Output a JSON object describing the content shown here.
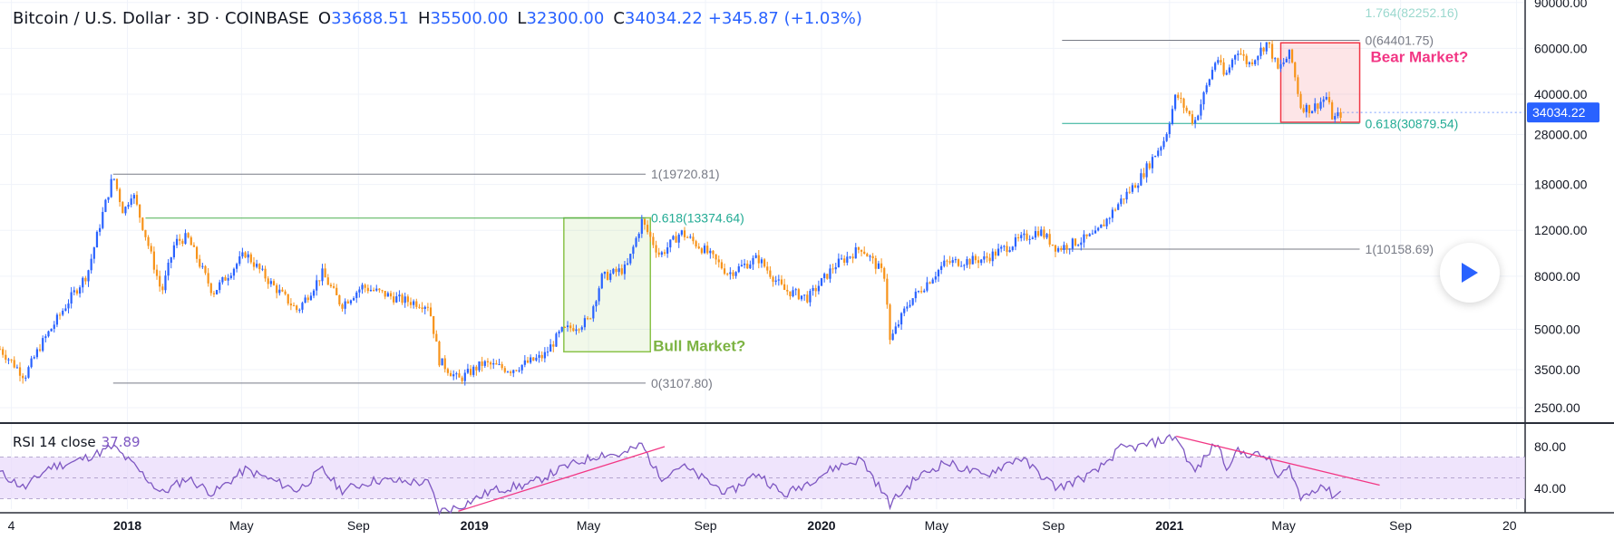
{
  "header": {
    "symbol": "Bitcoin / U.S. Dollar · 3D · COINBASE",
    "open_label": "O",
    "open": "33688.51",
    "high_label": "H",
    "high": "35500.00",
    "low_label": "L",
    "low": "32300.00",
    "close_label": "C",
    "close": "34034.22",
    "change": "+345.87 (+1.03%)"
  },
  "rsi_header": {
    "label": "RSI 14 close",
    "value": "37.89"
  },
  "colors": {
    "up": "#2962ff",
    "down": "#f7931a",
    "fib_line": "#787b86",
    "fib_green": "#22ab94",
    "bull_box": "#8bc34a",
    "bear_box": "#f23645",
    "rsi_line": "#7e57c2",
    "rsi_band": "#e8d9fb",
    "trend": "#f23684",
    "price_badge": "#2962ff"
  },
  "chart_data": [
    {
      "type": "candlestick",
      "title": "Bitcoin / U.S. Dollar · 3D · COINBASE",
      "scale": "log",
      "ylim": [
        2200,
        92000
      ],
      "y_ticks": [
        "90000.00",
        "60000.00",
        "40000.00",
        "28000.00",
        "18000.00",
        "12000.00",
        "8000.00",
        "5000.00",
        "3500.00",
        "2500.00"
      ],
      "y_tick_values": [
        90000,
        60000,
        40000,
        28000,
        18000,
        12000,
        8000,
        5000,
        3500,
        2500
      ],
      "x_ticks": [
        "4",
        "2018",
        "May",
        "Sep",
        "2019",
        "May",
        "Sep",
        "2020",
        "May",
        "Sep",
        "2021",
        "May",
        "Sep",
        "20"
      ],
      "x_tick_dates": [
        "2017-09-01",
        "2018-01-01",
        "2018-05-01",
        "2018-09-01",
        "2019-01-01",
        "2019-05-01",
        "2019-09-01",
        "2020-01-01",
        "2020-05-01",
        "2020-09-01",
        "2021-01-01",
        "2021-05-01",
        "2021-09-01",
        "2022-01-01"
      ],
      "xlim": [
        "2017-08-20",
        "2022-01-10"
      ],
      "price_path": [
        [
          "2017-08-20",
          4200
        ],
        [
          "2017-09-15",
          3300
        ],
        [
          "2017-10-01",
          4300
        ],
        [
          "2017-11-01",
          6500
        ],
        [
          "2017-11-20",
          8200
        ],
        [
          "2017-12-05",
          13500
        ],
        [
          "2017-12-17",
          19500
        ],
        [
          "2017-12-28",
          14000
        ],
        [
          "2018-01-06",
          17000
        ],
        [
          "2018-01-20",
          11500
        ],
        [
          "2018-02-06",
          6900
        ],
        [
          "2018-02-20",
          10800
        ],
        [
          "2018-03-05",
          11300
        ],
        [
          "2018-04-01",
          6900
        ],
        [
          "2018-05-05",
          9800
        ],
        [
          "2018-06-01",
          7500
        ],
        [
          "2018-06-29",
          5900
        ],
        [
          "2018-07-25",
          8200
        ],
        [
          "2018-08-14",
          6200
        ],
        [
          "2018-09-05",
          7300
        ],
        [
          "2018-10-15",
          6500
        ],
        [
          "2018-11-14",
          6200
        ],
        [
          "2018-11-25",
          3800
        ],
        [
          "2018-12-15",
          3200
        ],
        [
          "2019-01-10",
          3700
        ],
        [
          "2019-02-08",
          3500
        ],
        [
          "2019-03-15",
          3950
        ],
        [
          "2019-04-02",
          4900
        ],
        [
          "2019-05-01",
          5400
        ],
        [
          "2019-05-15",
          7900
        ],
        [
          "2019-06-10",
          8600
        ],
        [
          "2019-06-26",
          13000
        ],
        [
          "2019-07-15",
          9600
        ],
        [
          "2019-08-06",
          11800
        ],
        [
          "2019-09-01",
          10000
        ],
        [
          "2019-09-25",
          8200
        ],
        [
          "2019-10-26",
          9400
        ],
        [
          "2019-11-22",
          7100
        ],
        [
          "2019-12-18",
          6600
        ],
        [
          "2020-01-15",
          8800
        ],
        [
          "2020-02-12",
          10300
        ],
        [
          "2020-03-08",
          8000
        ],
        [
          "2020-03-13",
          4500
        ],
        [
          "2020-04-01",
          6300
        ],
        [
          "2020-05-10",
          9000
        ],
        [
          "2020-06-20",
          9300
        ],
        [
          "2020-07-27",
          11000
        ],
        [
          "2020-08-17",
          12000
        ],
        [
          "2020-09-05",
          10200
        ],
        [
          "2020-10-15",
          11500
        ],
        [
          "2020-11-10",
          15500
        ],
        [
          "2020-12-01",
          19000
        ],
        [
          "2020-12-27",
          27000
        ],
        [
          "2021-01-08",
          40000
        ],
        [
          "2021-01-27",
          31000
        ],
        [
          "2021-02-20",
          56000
        ],
        [
          "2021-02-28",
          46000
        ],
        [
          "2021-03-13",
          60000
        ],
        [
          "2021-03-25",
          52000
        ],
        [
          "2021-04-14",
          63500
        ],
        [
          "2021-04-25",
          49500
        ],
        [
          "2021-05-08",
          57500
        ],
        [
          "2021-05-19",
          36000
        ],
        [
          "2021-05-30",
          35000
        ],
        [
          "2021-06-15",
          39000
        ],
        [
          "2021-06-22",
          32000
        ],
        [
          "2021-07-02",
          34034
        ]
      ],
      "last_price": "34034.22",
      "fib_levels": [
        {
          "label": "1(19720.81)",
          "value": 19720.81,
          "from": "2017-12-17",
          "to": "2019-06-30"
        },
        {
          "label": "0.618(13374.64)",
          "value": 13374.64,
          "from": "2018-01-20",
          "to": "2019-06-30"
        },
        {
          "label": "0(3107.80)",
          "value": 3107.8,
          "from": "2017-12-17",
          "to": "2019-06-30"
        },
        {
          "label": "0(64401.75)",
          "value": 64401.75,
          "from": "2020-09-10",
          "to": "2021-07-20"
        },
        {
          "label": "0.618(30879.54)",
          "value": 30879.54,
          "from": "2020-09-10",
          "to": "2021-07-20"
        },
        {
          "label": "1(10158.69)",
          "value": 10158.69,
          "from": "2020-09-10",
          "to": "2021-07-20"
        },
        {
          "label": "1.764(82252.16)",
          "value": 82252.16,
          "from": "2021-07-20",
          "to": "2021-07-20"
        }
      ],
      "annotations": [
        {
          "text": "Bull Market?",
          "box_from": "2019-04-05",
          "box_to": "2019-07-05",
          "box_low": 4100,
          "box_high": 13400
        },
        {
          "text": "Bear Market?",
          "box_from": "2021-04-28",
          "box_to": "2021-07-20",
          "box_low": 31200,
          "box_high": 63000
        }
      ]
    },
    {
      "type": "line",
      "title": "RSI 14 close",
      "ylim": [
        20,
        100
      ],
      "y_ticks": [
        "80.00",
        "40.00"
      ],
      "y_tick_values": [
        80,
        40
      ],
      "band": [
        30,
        70
      ],
      "rsi_path": [
        [
          "2017-08-20",
          55
        ],
        [
          "2017-09-15",
          40
        ],
        [
          "2017-10-10",
          60
        ],
        [
          "2017-11-05",
          65
        ],
        [
          "2017-12-05",
          75
        ],
        [
          "2017-12-17",
          80
        ],
        [
          "2018-01-10",
          60
        ],
        [
          "2018-02-06",
          35
        ],
        [
          "2018-03-05",
          50
        ],
        [
          "2018-04-01",
          35
        ],
        [
          "2018-05-05",
          58
        ],
        [
          "2018-06-29",
          38
        ],
        [
          "2018-07-25",
          58
        ],
        [
          "2018-08-14",
          38
        ],
        [
          "2018-09-20",
          48
        ],
        [
          "2018-11-14",
          45
        ],
        [
          "2018-11-25",
          18
        ],
        [
          "2018-12-15",
          22
        ],
        [
          "2019-01-20",
          38
        ],
        [
          "2019-03-01",
          44
        ],
        [
          "2019-04-05",
          60
        ],
        [
          "2019-05-15",
          73
        ],
        [
          "2019-06-05",
          72
        ],
        [
          "2019-06-26",
          82
        ],
        [
          "2019-07-15",
          50
        ],
        [
          "2019-08-06",
          62
        ],
        [
          "2019-09-25",
          35
        ],
        [
          "2019-10-26",
          55
        ],
        [
          "2019-11-22",
          33
        ],
        [
          "2020-01-15",
          60
        ],
        [
          "2020-02-12",
          68
        ],
        [
          "2020-03-13",
          25
        ],
        [
          "2020-04-10",
          50
        ],
        [
          "2020-05-10",
          65
        ],
        [
          "2020-06-20",
          52
        ],
        [
          "2020-07-27",
          70
        ],
        [
          "2020-09-05",
          40
        ],
        [
          "2020-10-15",
          55
        ],
        [
          "2020-11-10",
          78
        ],
        [
          "2020-12-01",
          80
        ],
        [
          "2021-01-01",
          88
        ],
        [
          "2021-01-08",
          90
        ],
        [
          "2021-01-27",
          55
        ],
        [
          "2021-02-20",
          85
        ],
        [
          "2021-03-01",
          60
        ],
        [
          "2021-03-13",
          75
        ],
        [
          "2021-04-14",
          70
        ],
        [
          "2021-04-25",
          50
        ],
        [
          "2021-05-08",
          60
        ],
        [
          "2021-05-19",
          30
        ],
        [
          "2021-06-10",
          44
        ],
        [
          "2021-06-22",
          33
        ],
        [
          "2021-07-02",
          38
        ]
      ],
      "trendlines": [
        {
          "from": [
            "2018-12-15",
            18
          ],
          "to": [
            "2019-07-20",
            80
          ]
        },
        {
          "from": [
            "2021-01-08",
            90
          ],
          "to": [
            "2021-08-10",
            43
          ]
        }
      ]
    }
  ]
}
